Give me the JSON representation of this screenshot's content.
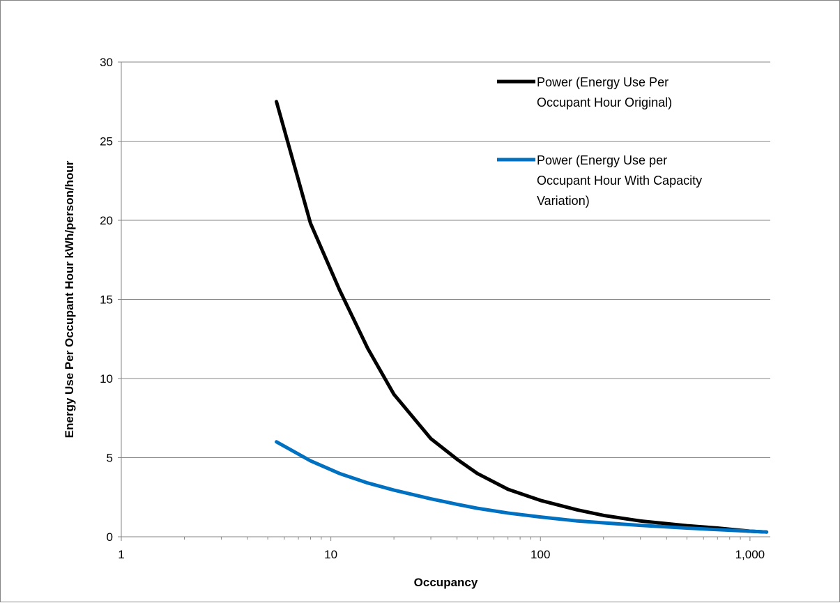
{
  "chart_data": {
    "type": "line",
    "title": "",
    "xlabel": "Occupancy",
    "ylabel": "Energy Use Per Occupant Hour kWh/person/hour",
    "x_scale": "log",
    "xlim": [
      1,
      1250
    ],
    "ylim": [
      0,
      30
    ],
    "x_ticks": [
      1,
      10,
      100,
      1000
    ],
    "x_tick_labels": [
      "1",
      "10",
      "100",
      "1,000"
    ],
    "y_ticks": [
      0,
      5,
      10,
      15,
      20,
      25,
      30
    ],
    "y_tick_labels": [
      "0",
      "5",
      "10",
      "15",
      "20",
      "25",
      "30"
    ],
    "grid": "horizontal major gridlines",
    "legend_position": "top-right",
    "series": [
      {
        "name": "Power (Energy Use Per Occupant Hour Original)",
        "legend_lines": [
          "Power (Energy Use Per",
          "Occupant Hour Original)"
        ],
        "color": "#000000",
        "x": [
          5.5,
          8,
          11,
          15,
          20,
          30,
          40,
          50,
          70,
          100,
          150,
          200,
          300,
          500,
          700,
          1000,
          1200
        ],
        "y": [
          27.5,
          19.8,
          15.6,
          11.9,
          9.0,
          6.2,
          4.9,
          4.0,
          3.0,
          2.3,
          1.7,
          1.35,
          1.0,
          0.7,
          0.55,
          0.35,
          0.3
        ]
      },
      {
        "name": "Power (Energy Use per Occupant Hour With Capacity Variation)",
        "legend_lines": [
          "Power (Energy Use per",
          "Occupant Hour With Capacity",
          "Variation)"
        ],
        "color": "#0070C0",
        "x": [
          5.5,
          8,
          11,
          15,
          20,
          30,
          40,
          50,
          70,
          100,
          150,
          200,
          300,
          500,
          700,
          1000,
          1200
        ],
        "y": [
          6.0,
          4.8,
          4.0,
          3.4,
          2.95,
          2.4,
          2.05,
          1.8,
          1.5,
          1.25,
          1.0,
          0.88,
          0.72,
          0.55,
          0.45,
          0.35,
          0.3
        ]
      }
    ]
  }
}
